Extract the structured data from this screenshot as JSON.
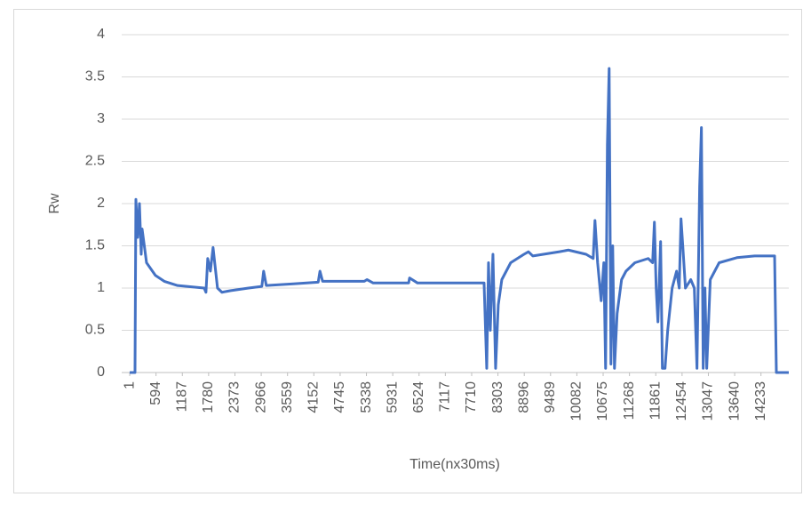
{
  "chart_data": {
    "type": "line",
    "x_label": "Time(nx30ms)",
    "y_label": "Rw",
    "xlim": [
      -180,
      14860
    ],
    "ylim": [
      0,
      4
    ],
    "xticks": [
      1,
      594,
      1187,
      1780,
      2373,
      2966,
      3559,
      4152,
      4745,
      5338,
      5931,
      6524,
      7117,
      7710,
      8303,
      8896,
      9489,
      10082,
      10675,
      11268,
      11861,
      12454,
      13047,
      13640,
      14233
    ],
    "yticks": [
      0,
      0.5,
      1,
      1.5,
      2,
      2.5,
      3,
      3.5,
      4
    ],
    "grid": true,
    "series": [
      {
        "name": "Rw",
        "color": "#4472c4",
        "x": [
          1,
          120,
          140,
          180,
          220,
          260,
          280,
          380,
          580,
          780,
          1080,
          1680,
          1720,
          1760,
          1820,
          1880,
          1980,
          2080,
          2280,
          2680,
          2980,
          3020,
          3080,
          3690,
          4250,
          4290,
          4350,
          5290,
          5350,
          5490,
          6290,
          6310,
          6490,
          7990,
          8050,
          8090,
          8130,
          8190,
          8250,
          8310,
          8390,
          8590,
          8890,
          8990,
          9090,
          9690,
          9890,
          10290,
          10450,
          10490,
          10550,
          10630,
          10690,
          10730,
          10770,
          10810,
          10850,
          10890,
          10930,
          10990,
          11090,
          11190,
          11390,
          11690,
          11790,
          11830,
          11870,
          11910,
          11970,
          12010,
          12070,
          12130,
          12230,
          12330,
          12390,
          12430,
          12470,
          12530,
          12650,
          12730,
          12790,
          12850,
          12890,
          12930,
          12970,
          13010,
          13090,
          13290,
          13690,
          14090,
          14540,
          14580,
          14860
        ],
        "values": [
          0,
          0,
          2.05,
          1.6,
          2.0,
          1.4,
          1.7,
          1.3,
          1.15,
          1.08,
          1.03,
          1.0,
          0.95,
          1.35,
          1.2,
          1.48,
          1.0,
          0.95,
          0.97,
          1.0,
          1.02,
          1.2,
          1.03,
          1.05,
          1.07,
          1.2,
          1.08,
          1.08,
          1.1,
          1.06,
          1.06,
          1.12,
          1.06,
          1.06,
          0.05,
          1.3,
          0.5,
          1.4,
          0.05,
          0.8,
          1.1,
          1.3,
          1.4,
          1.43,
          1.38,
          1.43,
          1.45,
          1.4,
          1.35,
          1.8,
          1.3,
          0.85,
          1.3,
          0.05,
          2.7,
          3.6,
          0.1,
          1.5,
          0.05,
          0.7,
          1.1,
          1.2,
          1.3,
          1.35,
          1.3,
          1.78,
          1.0,
          0.6,
          1.55,
          0.05,
          0.05,
          0.5,
          1.0,
          1.2,
          1.0,
          1.82,
          1.5,
          1.0,
          1.1,
          1.0,
          0.05,
          2.2,
          2.9,
          0.05,
          1.0,
          0.05,
          1.1,
          1.3,
          1.36,
          1.38,
          1.38,
          0,
          0
        ]
      }
    ]
  }
}
